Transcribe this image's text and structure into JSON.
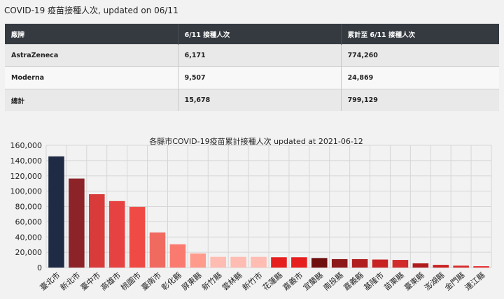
{
  "header": {
    "title": "COVID-19 疫苗接種人次, updated on 06/11"
  },
  "table": {
    "columns": [
      "廠牌",
      "6/11 接種人次",
      "累計至 6/11 接種人次"
    ],
    "rows": [
      [
        "AstraZeneca",
        "6,171",
        "774,260"
      ],
      [
        "Moderna",
        "9,507",
        "24,869"
      ],
      [
        "總計",
        "15,678",
        "799,129"
      ]
    ]
  },
  "chart_data": {
    "type": "bar",
    "title": "各縣市COVID-19疫苗累計接種人次 updated at 2021-06-12",
    "xlabel": "",
    "ylabel": "",
    "ylim": [
      0,
      160000
    ],
    "yticks": [
      0,
      20000,
      40000,
      60000,
      80000,
      100000,
      120000,
      140000,
      160000
    ],
    "ytick_labels": [
      "0",
      "20,000",
      "40,000",
      "60,000",
      "80,000",
      "100,000",
      "120,000",
      "140,000",
      "160,000"
    ],
    "grid": true,
    "categories": [
      "臺北市",
      "新北市",
      "臺中市",
      "高雄市",
      "桃園市",
      "臺南市",
      "彰化縣",
      "屏東縣",
      "新竹縣",
      "雲林縣",
      "新竹市",
      "花蓮縣",
      "嘉義市",
      "宜蘭縣",
      "南投縣",
      "嘉義縣",
      "基隆市",
      "苗栗縣",
      "臺東縣",
      "澎湖縣",
      "金門縣",
      "連江縣"
    ],
    "values": [
      145500,
      116500,
      96000,
      87000,
      79500,
      46000,
      30500,
      18500,
      14000,
      14000,
      14000,
      13500,
      13500,
      12500,
      11000,
      11000,
      10500,
      10000,
      5500,
      3500,
      2500,
      1800
    ],
    "colors": [
      "#1f2a44",
      "#8c2328",
      "#d93b3b",
      "#e64242",
      "#f04a44",
      "#f06a60",
      "#fa7a70",
      "#ff9b8c",
      "#ffbcb2",
      "#ffbcb2",
      "#ffbcb2",
      "#e61e1e",
      "#e61e1e",
      "#6e1010",
      "#8c1818",
      "#b11e1e",
      "#c82323",
      "#d22b2b",
      "#b01a1a",
      "#c81e1e",
      "#d72828",
      "#e63232"
    ]
  }
}
